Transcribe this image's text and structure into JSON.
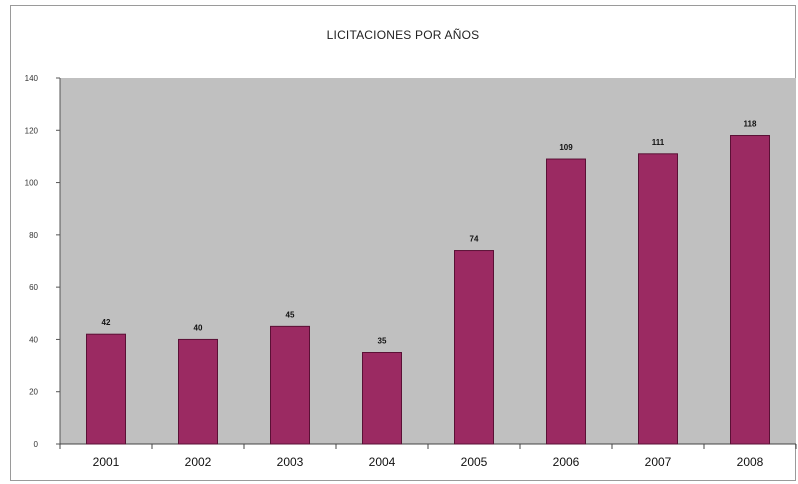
{
  "colors": {
    "plot_bg": "#c0c0c0",
    "bar": "#9b2a62",
    "bar_edge": "#5a1035"
  },
  "chart_data": {
    "type": "bar",
    "title": "LICITACIONES POR AÑOS",
    "xlabel": "",
    "ylabel": "",
    "categories": [
      "2001",
      "2002",
      "2003",
      "2004",
      "2005",
      "2006",
      "2007",
      "2008"
    ],
    "values": [
      42,
      40,
      45,
      35,
      74,
      109,
      111,
      118
    ],
    "data_labels": [
      "42",
      "40",
      "45",
      "35",
      "74",
      "109",
      "111",
      "118"
    ],
    "ylim": [
      0,
      140
    ],
    "yticks": [
      0,
      20,
      40,
      60,
      80,
      100,
      120,
      140
    ],
    "grid": false,
    "legend": "none"
  }
}
